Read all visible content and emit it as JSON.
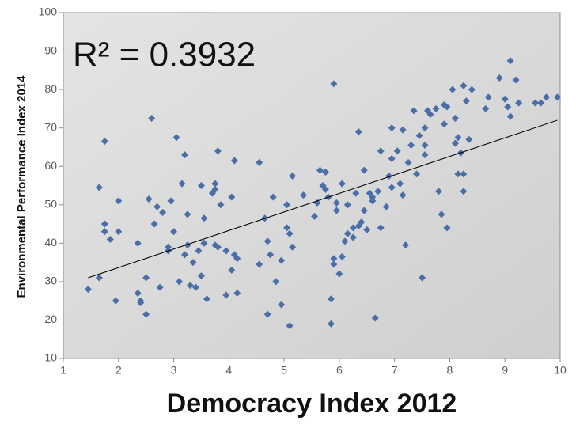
{
  "chart_data": {
    "type": "scatter",
    "annotation": "R² = 0.3932",
    "xlabel": "Democracy Index 2012",
    "ylabel": "Environmental Performance Index 2014",
    "xlim": [
      1,
      10
    ],
    "xticks": [
      1,
      2,
      3,
      4,
      5,
      6,
      7,
      8,
      9,
      10
    ],
    "ylim": [
      10,
      100
    ],
    "yticks": [
      10,
      20,
      30,
      40,
      50,
      60,
      70,
      80,
      90,
      100
    ],
    "grid": false,
    "series": [
      {
        "color": "#4a6fa8",
        "x": [
          1.45,
          1.65,
          1.65,
          1.75,
          1.75,
          1.75,
          1.85,
          1.95,
          2.0,
          2.0,
          2.35,
          2.35,
          2.4,
          2.4,
          2.5,
          2.5,
          2.55,
          2.6,
          2.65,
          2.7,
          2.75,
          2.8,
          2.9,
          2.9,
          2.95,
          3.0,
          3.05,
          3.1,
          3.15,
          3.2,
          3.2,
          3.25,
          3.25,
          3.3,
          3.35,
          3.4,
          3.45,
          3.5,
          3.5,
          3.55,
          3.55,
          3.6,
          3.7,
          3.75,
          3.75,
          3.75,
          3.8,
          3.8,
          3.85,
          3.95,
          3.95,
          4.05,
          4.05,
          4.1,
          4.1,
          4.15,
          4.15,
          4.55,
          4.55,
          4.65,
          4.7,
          4.7,
          4.75,
          4.8,
          4.85,
          4.95,
          4.95,
          5.05,
          5.05,
          5.1,
          5.1,
          5.15,
          5.15,
          5.35,
          5.55,
          5.6,
          5.65,
          5.7,
          5.75,
          5.75,
          5.8,
          5.85,
          5.85,
          5.9,
          5.9,
          5.9,
          5.95,
          5.95,
          6.0,
          6.05,
          6.05,
          6.1,
          6.15,
          6.15,
          6.25,
          6.25,
          6.3,
          6.35,
          6.35,
          6.4,
          6.45,
          6.45,
          6.5,
          6.55,
          6.6,
          6.6,
          6.65,
          6.7,
          6.75,
          6.75,
          6.85,
          6.9,
          6.95,
          6.95,
          6.95,
          7.05,
          7.1,
          7.15,
          7.15,
          7.2,
          7.25,
          7.3,
          7.35,
          7.4,
          7.45,
          7.5,
          7.55,
          7.55,
          7.55,
          7.6,
          7.65,
          7.75,
          7.8,
          7.85,
          7.9,
          7.9,
          7.95,
          7.95,
          8.05,
          8.1,
          8.1,
          8.15,
          8.15,
          8.2,
          8.25,
          8.25,
          8.25,
          8.3,
          8.35,
          8.4,
          8.65,
          8.7,
          8.9,
          9.0,
          9.05,
          9.1,
          9.1,
          9.2,
          9.25,
          9.55,
          9.65,
          9.75,
          9.95
        ],
        "values": [
          28,
          31,
          54.5,
          66.5,
          45,
          43,
          41,
          25,
          51,
          43,
          40,
          27,
          25,
          24.5,
          21.5,
          31,
          51.5,
          72.5,
          45,
          49.5,
          28.5,
          48,
          39,
          38,
          51,
          43,
          67.5,
          30,
          55.5,
          63,
          37,
          39.5,
          47.5,
          29,
          35,
          28.5,
          38,
          31.5,
          55,
          40,
          46.5,
          25.5,
          53,
          54,
          39.5,
          55.5,
          39,
          64,
          50,
          26.5,
          38,
          33,
          52,
          61.5,
          37,
          36,
          27,
          61,
          34.5,
          46.5,
          21.5,
          40.5,
          37,
          52,
          30,
          35.5,
          24,
          50,
          44,
          18.5,
          42.5,
          57.5,
          39,
          52.5,
          47,
          50.5,
          59,
          55,
          54,
          58.5,
          52,
          19,
          25.5,
          81.5,
          36,
          34.5,
          50.5,
          48.5,
          32,
          55.5,
          36.5,
          40.5,
          42.5,
          50,
          44,
          41.5,
          53,
          69,
          44.5,
          45.5,
          59,
          48.5,
          43.5,
          53,
          51,
          52,
          20.5,
          53.5,
          64,
          44,
          49.5,
          57.5,
          62,
          54.5,
          70,
          64,
          55.5,
          52.5,
          69.5,
          39.5,
          61,
          65.5,
          74.5,
          58,
          68,
          31,
          65.5,
          70,
          63,
          74.5,
          73.5,
          75,
          53.5,
          47.5,
          76,
          71,
          44,
          75.5,
          80,
          66,
          72.5,
          67.5,
          58,
          63.5,
          81,
          58,
          53.5,
          77,
          67,
          80,
          75,
          78,
          83,
          77.5,
          75.5,
          73,
          87.5,
          82.5,
          76.5,
          76.5,
          76.5,
          78,
          78
        ]
      }
    ],
    "trendline": {
      "color": "#000000",
      "x": [
        1.45,
        9.95
      ],
      "values": [
        31,
        72
      ]
    }
  }
}
